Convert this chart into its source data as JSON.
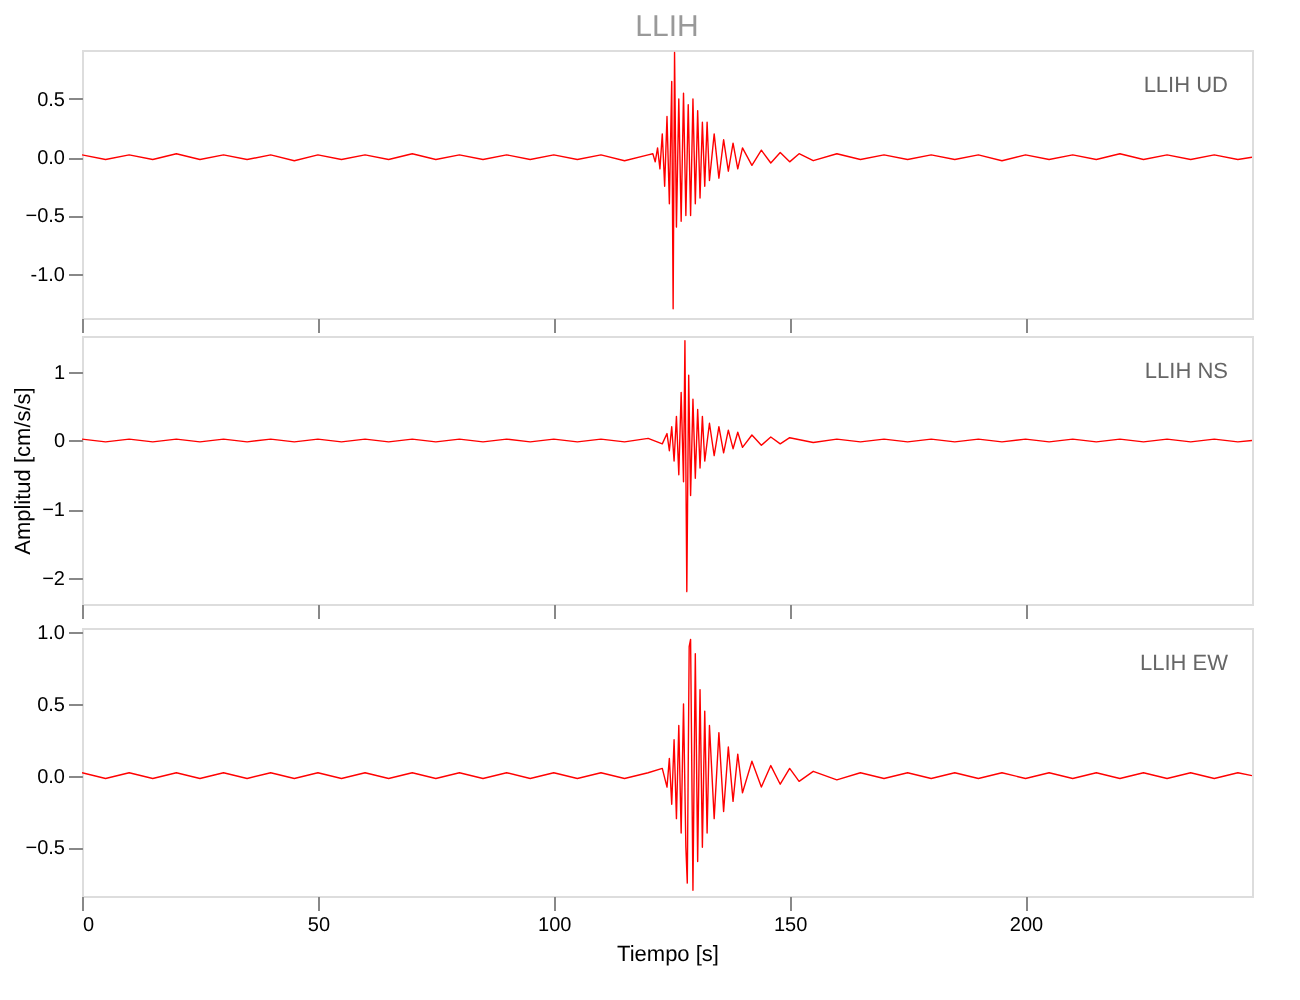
{
  "chart_data": [
    {
      "type": "line",
      "title": "LLIH",
      "annotations": [
        "LLIH   UD"
      ],
      "xlim": [
        0,
        248
      ],
      "xticks": [
        0,
        50,
        100,
        150,
        200
      ],
      "ylim": [
        -1.38,
        0.92
      ],
      "yticks": [
        0.5,
        {
          "value": 0,
          "label": "0.0"
        },
        -0.5,
        {
          "value": -1,
          "label": "-1.0"
        }
      ],
      "tick_labels": "y",
      "grid": false,
      "series": [
        {
          "color": "#ff0000",
          "x": [
            0,
            5,
            10,
            15,
            20,
            25,
            30,
            35,
            40,
            45,
            50,
            55,
            60,
            65,
            70,
            75,
            80,
            85,
            90,
            95,
            100,
            105,
            110,
            115,
            120,
            121,
            121.5,
            122,
            122.5,
            123,
            123.5,
            124,
            124.5,
            125,
            125.3,
            125.6,
            126,
            126.5,
            127,
            127.5,
            128,
            128.5,
            129,
            129.5,
            130,
            130.5,
            131,
            131.5,
            132,
            132.5,
            133,
            134,
            135,
            136,
            137,
            138,
            139,
            140,
            142,
            144,
            146,
            148,
            150,
            152,
            155,
            160,
            165,
            170,
            175,
            180,
            185,
            190,
            195,
            200,
            205,
            210,
            215,
            220,
            225,
            230,
            235,
            240,
            245,
            248
          ],
          "values": [
            0.02,
            -0.02,
            0.02,
            -0.02,
            0.03,
            -0.02,
            0.02,
            -0.02,
            0.02,
            -0.03,
            0.02,
            -0.02,
            0.02,
            -0.02,
            0.03,
            -0.02,
            0.02,
            -0.02,
            0.02,
            -0.02,
            0.02,
            -0.02,
            0.02,
            -0.03,
            0.02,
            0.03,
            -0.04,
            0.08,
            -0.1,
            0.2,
            -0.25,
            0.35,
            -0.4,
            0.65,
            -1.3,
            0.9,
            -0.6,
            0.5,
            -0.55,
            0.55,
            -0.5,
            0.45,
            -0.5,
            0.5,
            -0.4,
            0.4,
            -0.35,
            0.3,
            -0.25,
            0.3,
            -0.2,
            0.2,
            -0.18,
            0.15,
            -0.12,
            0.12,
            -0.1,
            0.08,
            -0.07,
            0.06,
            -0.05,
            0.04,
            -0.04,
            0.03,
            -0.03,
            0.03,
            -0.02,
            0.02,
            -0.02,
            0.02,
            -0.02,
            0.02,
            -0.03,
            0.02,
            -0.02,
            0.02,
            -0.02,
            0.03,
            -0.02,
            0.02,
            -0.02,
            0.02,
            -0.02,
            0.0
          ]
        }
      ]
    },
    {
      "type": "line",
      "ylabel": "Amplitud [cm/s/s]",
      "annotations": [
        "LLIH   NS"
      ],
      "xlim": [
        0,
        248
      ],
      "xticks": [
        0,
        50,
        100,
        150,
        200
      ],
      "ylim": [
        -2.38,
        1.52
      ],
      "yticks": [
        1,
        0,
        -1,
        -2
      ],
      "tick_labels": "y",
      "grid": false,
      "series": [
        {
          "color": "#ff0000",
          "x": [
            0,
            5,
            10,
            15,
            20,
            25,
            30,
            35,
            40,
            45,
            50,
            55,
            60,
            65,
            70,
            75,
            80,
            85,
            90,
            95,
            100,
            105,
            110,
            115,
            120,
            123,
            124,
            124.5,
            125,
            125.5,
            126,
            126.5,
            127,
            127.5,
            127.8,
            128.2,
            128.6,
            129,
            129.5,
            130,
            130.5,
            131,
            131.5,
            132,
            133,
            134,
            135,
            136,
            137,
            138,
            139,
            140,
            142,
            144,
            146,
            148,
            150,
            155,
            160,
            165,
            170,
            175,
            180,
            185,
            190,
            195,
            200,
            205,
            210,
            215,
            220,
            225,
            230,
            235,
            240,
            245,
            248
          ],
          "values": [
            0.02,
            -0.02,
            0.02,
            -0.02,
            0.02,
            -0.02,
            0.02,
            -0.02,
            0.02,
            -0.02,
            0.02,
            -0.02,
            0.02,
            -0.02,
            0.02,
            -0.02,
            0.02,
            -0.02,
            0.02,
            -0.02,
            0.02,
            -0.02,
            0.02,
            -0.02,
            0.03,
            -0.05,
            0.1,
            -0.15,
            0.2,
            -0.3,
            0.35,
            -0.5,
            0.7,
            -0.6,
            1.45,
            -2.2,
            0.95,
            -0.8,
            0.6,
            -0.55,
            0.45,
            -0.4,
            0.35,
            -0.3,
            0.25,
            -0.22,
            0.2,
            -0.18,
            0.15,
            -0.12,
            0.12,
            -0.1,
            0.08,
            -0.07,
            0.05,
            -0.05,
            0.04,
            -0.03,
            0.02,
            -0.02,
            0.02,
            -0.02,
            0.02,
            -0.02,
            0.02,
            -0.02,
            0.02,
            -0.02,
            0.02,
            -0.02,
            0.02,
            -0.02,
            0.02,
            -0.02,
            0.02,
            -0.02,
            0.0
          ]
        }
      ]
    },
    {
      "type": "line",
      "xlabel": "Tiempo [s]",
      "annotations": [
        "LLIH   EW"
      ],
      "xlim": [
        0,
        248
      ],
      "xticks": [
        0,
        50,
        100,
        150,
        200
      ],
      "ylim": [
        -0.84,
        1.03
      ],
      "yticks": [
        {
          "value": 1,
          "label": "1.0"
        },
        0.5,
        {
          "value": 0,
          "label": "0.0"
        },
        -0.5
      ],
      "grid": false,
      "series": [
        {
          "color": "#ff0000",
          "x": [
            0,
            5,
            10,
            15,
            20,
            25,
            30,
            35,
            40,
            45,
            50,
            55,
            60,
            65,
            70,
            75,
            80,
            85,
            90,
            95,
            100,
            105,
            110,
            115,
            120,
            123,
            124,
            124.5,
            125,
            125.5,
            126,
            126.5,
            127,
            127.5,
            128,
            128.3,
            128.7,
            129,
            129.5,
            130,
            130.5,
            131,
            131.5,
            132,
            132.5,
            133,
            134,
            135,
            136,
            137,
            138,
            139,
            140,
            142,
            144,
            146,
            148,
            150,
            152,
            155,
            160,
            165,
            170,
            175,
            180,
            185,
            190,
            195,
            200,
            205,
            210,
            215,
            220,
            225,
            230,
            235,
            240,
            245,
            248
          ],
          "values": [
            0.02,
            -0.02,
            0.02,
            -0.02,
            0.02,
            -0.02,
            0.02,
            -0.02,
            0.02,
            -0.02,
            0.02,
            -0.02,
            0.02,
            -0.02,
            0.02,
            -0.02,
            0.02,
            -0.02,
            0.02,
            -0.02,
            0.02,
            -0.02,
            0.02,
            -0.02,
            0.02,
            0.05,
            -0.08,
            0.12,
            -0.2,
            0.25,
            -0.3,
            0.35,
            -0.4,
            0.5,
            -0.5,
            -0.75,
            0.9,
            0.95,
            -0.8,
            0.85,
            -0.6,
            0.6,
            -0.5,
            0.45,
            -0.4,
            0.35,
            -0.3,
            0.3,
            -0.25,
            0.2,
            -0.18,
            0.15,
            -0.12,
            0.1,
            -0.08,
            0.07,
            -0.06,
            0.05,
            -0.04,
            0.03,
            -0.03,
            0.02,
            -0.02,
            0.02,
            -0.02,
            0.02,
            -0.02,
            0.02,
            -0.02,
            0.02,
            -0.02,
            0.02,
            -0.02,
            0.02,
            -0.02,
            0.02,
            -0.02,
            0.02,
            0.0
          ]
        }
      ]
    }
  ]
}
